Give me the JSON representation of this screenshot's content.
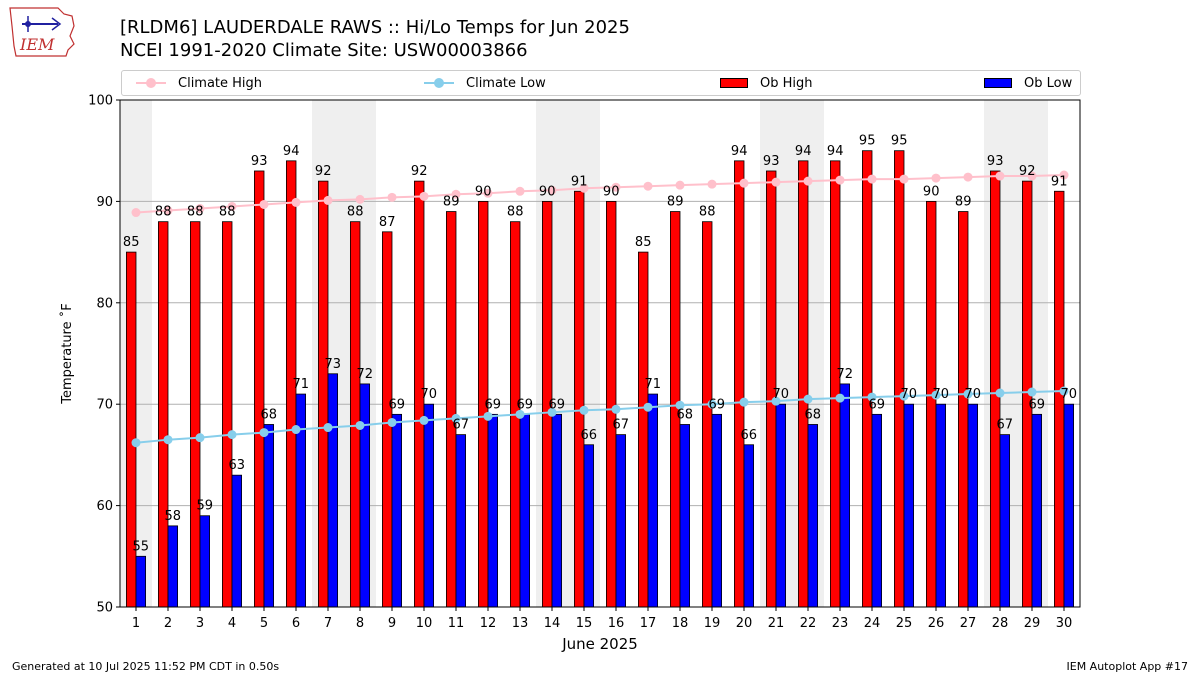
{
  "header": {
    "logo_text": "IEM",
    "title_line1": "[RLDM6] LAUDERDALE RAWS :: Hi/Lo Temps for Jun 2025",
    "title_line2": "NCEI 1991-2020 Climate Site: USW00003866"
  },
  "legend": {
    "items": [
      {
        "label": "Climate High",
        "kind": "line",
        "color": "#ffc0cb"
      },
      {
        "label": "Climate Low",
        "kind": "line",
        "color": "#87ceeb"
      },
      {
        "label": "Ob High",
        "kind": "patch",
        "color": "#ff0000"
      },
      {
        "label": "Ob Low",
        "kind": "patch",
        "color": "#0000ff"
      }
    ]
  },
  "chart_data": {
    "type": "bar",
    "title": "[RLDM6] LAUDERDALE RAWS :: Hi/Lo Temps for Jun 2025",
    "subtitle": "NCEI 1991-2020 Climate Site: USW00003866",
    "xlabel": "June 2025",
    "ylabel": "Temperature ˚F",
    "ylim": [
      50,
      100
    ],
    "yticks": [
      50,
      60,
      70,
      80,
      90,
      100
    ],
    "grid": "y",
    "legend_placement": "top",
    "categories": [
      "1",
      "2",
      "3",
      "4",
      "5",
      "6",
      "7",
      "8",
      "9",
      "10",
      "11",
      "12",
      "13",
      "14",
      "15",
      "16",
      "17",
      "18",
      "19",
      "20",
      "21",
      "22",
      "23",
      "24",
      "25",
      "26",
      "27",
      "28",
      "29",
      "30"
    ],
    "weekend_days": [
      1,
      7,
      8,
      14,
      15,
      21,
      22,
      28,
      29
    ],
    "series": [
      {
        "name": "Ob High",
        "kind": "bar",
        "color": "#ff0000",
        "values": [
          85,
          88,
          88,
          88,
          93,
          94,
          92,
          88,
          87,
          92,
          89,
          90,
          88,
          90,
          91,
          90,
          85,
          89,
          88,
          94,
          93,
          94,
          94,
          95,
          95,
          90,
          89,
          93,
          92,
          91
        ]
      },
      {
        "name": "Ob Low",
        "kind": "bar",
        "color": "#0000ff",
        "values": [
          55,
          58,
          59,
          63,
          68,
          71,
          73,
          72,
          69,
          70,
          67,
          69,
          69,
          69,
          66,
          67,
          71,
          68,
          69,
          66,
          70,
          68,
          72,
          69,
          70,
          70,
          70,
          67,
          69,
          70
        ]
      },
      {
        "name": "Climate High",
        "kind": "line",
        "color": "#ffc0cb",
        "values": [
          88.9,
          89.1,
          89.3,
          89.5,
          89.7,
          89.9,
          90.1,
          90.2,
          90.4,
          90.5,
          90.7,
          90.8,
          91.0,
          91.1,
          91.3,
          91.4,
          91.5,
          91.6,
          91.7,
          91.8,
          91.9,
          92.0,
          92.1,
          92.2,
          92.2,
          92.3,
          92.4,
          92.5,
          92.5,
          92.6
        ]
      },
      {
        "name": "Climate Low",
        "kind": "line",
        "color": "#87ceeb",
        "values": [
          66.2,
          66.5,
          66.7,
          67.0,
          67.2,
          67.5,
          67.7,
          67.9,
          68.2,
          68.4,
          68.6,
          68.8,
          69.0,
          69.2,
          69.4,
          69.5,
          69.7,
          69.9,
          70.0,
          70.2,
          70.3,
          70.5,
          70.6,
          70.7,
          70.8,
          70.9,
          71.0,
          71.1,
          71.2,
          71.3
        ]
      }
    ]
  },
  "footer": {
    "left": "Generated at 10 Jul 2025 11:52 PM CDT in 0.50s",
    "right": "IEM Autoplot App #17"
  }
}
